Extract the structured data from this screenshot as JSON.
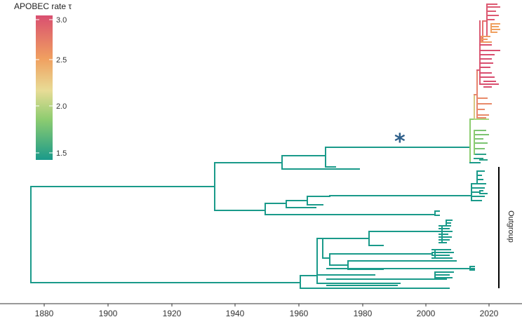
{
  "legend": {
    "title": "APOBEC rate τ",
    "ticks": [
      "3.0",
      "2.5",
      "2.0",
      "1.5"
    ],
    "tick_values": [
      3.0,
      2.5,
      2.0,
      1.5
    ],
    "range": [
      1.38,
      3.08
    ],
    "gradient_colors": [
      "#d94f70",
      "#f0a060",
      "#e8dc96",
      "#8dcc70",
      "#1a9a8a"
    ]
  },
  "axis": {
    "ticks": [
      "1880",
      "1900",
      "1920",
      "1940",
      "1960",
      "1980",
      "2000",
      "2020"
    ],
    "tick_values": [
      1880,
      1900,
      1920,
      1940,
      1960,
      1980,
      2000,
      2020
    ]
  },
  "annotations": {
    "asterisk": "*",
    "outgroup_label": "Outgroup"
  },
  "colors": {
    "base_branch": "#1a9a8a",
    "asterisk": "#2e5f8a",
    "axis": "#333333"
  }
}
